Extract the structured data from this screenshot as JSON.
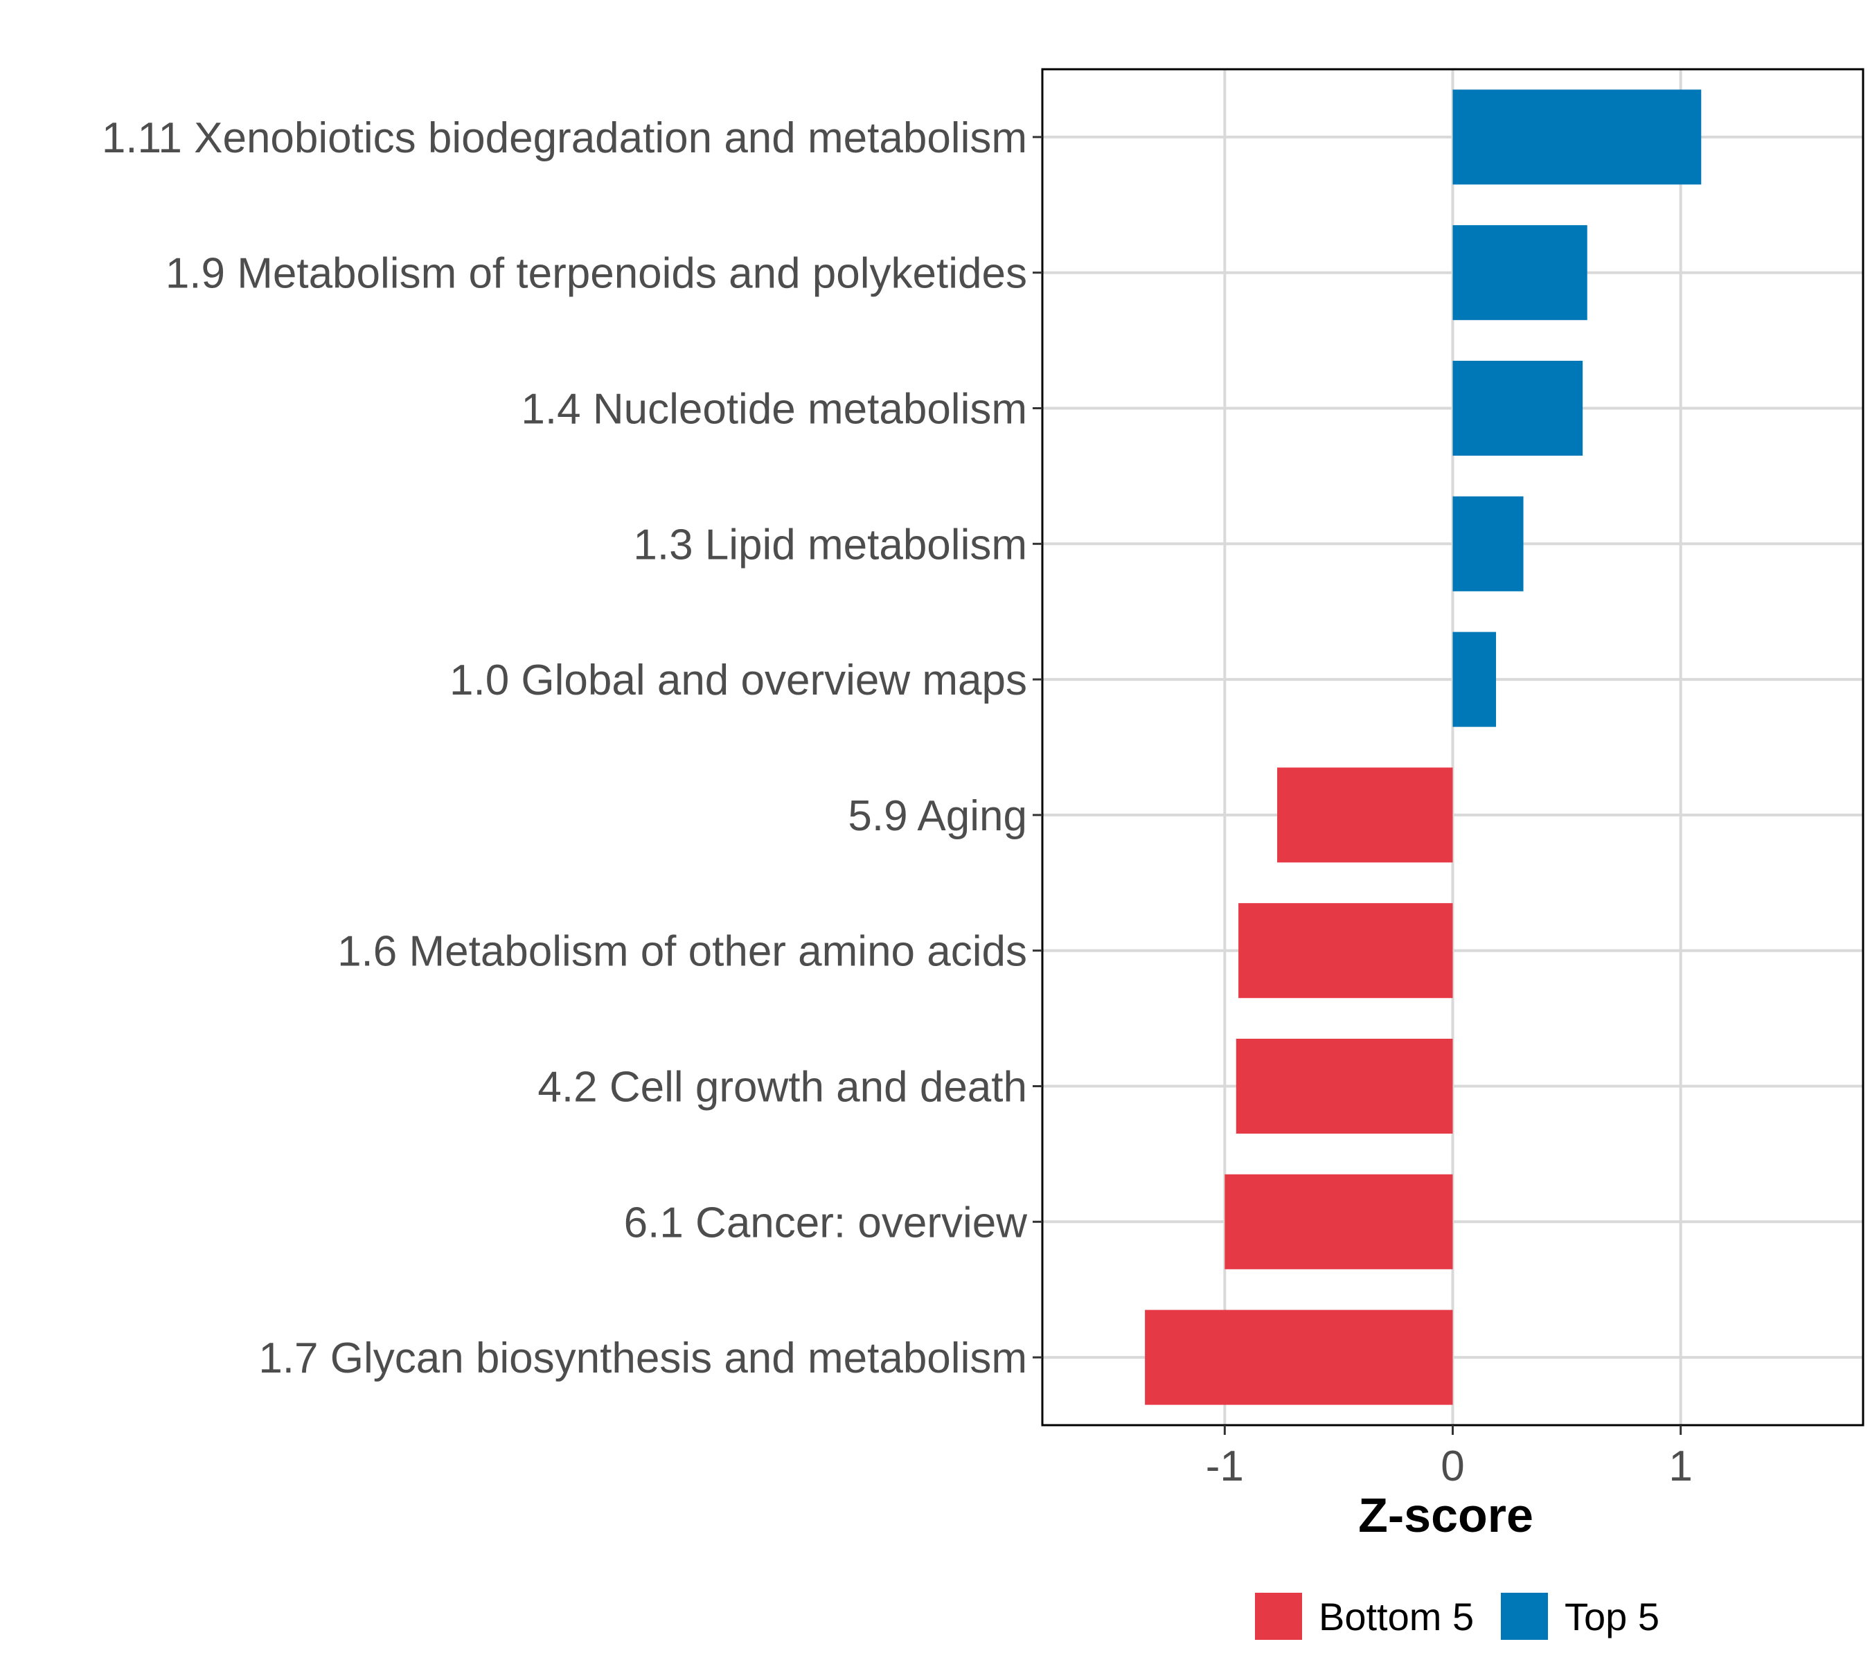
{
  "chart_data": {
    "type": "bar",
    "orientation": "horizontal",
    "title": "",
    "xlabel": "Z-score",
    "ylabel": "",
    "xlim": [
      -1.8,
      1.8
    ],
    "xticks": [
      -1,
      0,
      1
    ],
    "xtick_labels": [
      "-1",
      "0",
      "1"
    ],
    "grid": true,
    "categories": [
      "1.11 Xenobiotics biodegradation and metabolism",
      "1.9 Metabolism of terpenoids and polyketides",
      "1.4 Nucleotide metabolism",
      "1.3 Lipid metabolism",
      "1.0 Global and overview maps",
      "5.9 Aging",
      "1.6 Metabolism of other amino acids",
      "4.2 Cell growth and death",
      "6.1 Cancer: overview",
      "1.7 Glycan biosynthesis and metabolism"
    ],
    "values": [
      1.09,
      0.59,
      0.57,
      0.31,
      0.19,
      -0.77,
      -0.94,
      -0.95,
      -1.0,
      -1.35
    ],
    "groups": [
      "Top 5",
      "Top 5",
      "Top 5",
      "Top 5",
      "Top 5",
      "Bottom 5",
      "Bottom 5",
      "Bottom 5",
      "Bottom 5",
      "Bottom 5"
    ],
    "legend": {
      "position": "bottom",
      "entries": [
        {
          "label": "Bottom 5",
          "color": "#E63946"
        },
        {
          "label": "Top 5",
          "color": "#0077B6"
        }
      ]
    }
  }
}
